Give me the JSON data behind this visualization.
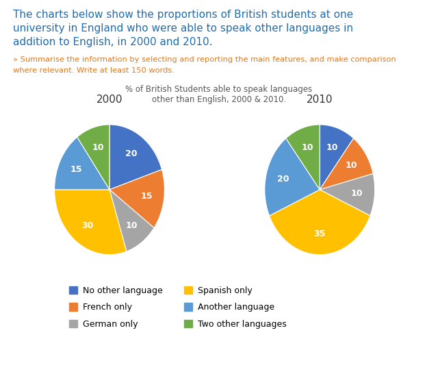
{
  "title_line1": "The charts below show the proportions of British students at one",
  "title_line2": "university in England who were able to speak other languages in",
  "title_line3": "addition to English, in 2000 and 2010.",
  "subtitle": "» Summarise the information by selecting and reporting the main features, and make comparison",
  "subtitle2": "where relevant. Write at least 150 words.",
  "chart_title": "% of British Students able to speak languages\nother than English, 2000 & 2010.",
  "title_color": "#1F6CB0",
  "subtitle_color": "#E07820",
  "chart_title_color": "#555555",
  "year_2000_label": "2000",
  "year_2010_label": "2010",
  "categories": [
    "No other language",
    "French only",
    "German only",
    "Spanish only",
    "Another language",
    "Two other languages"
  ],
  "colors": [
    "#4472C4",
    "#ED7D31",
    "#A5A5A5",
    "#FFC000",
    "#5B9BD5",
    "#70AD47"
  ],
  "values_2000": [
    20,
    15,
    10,
    30,
    15,
    10
  ],
  "values_2010": [
    10,
    10,
    10,
    35,
    20,
    10
  ],
  "bg_color": "#FFFFFF",
  "startangle_2000": 90,
  "startangle_2010": 90,
  "pctdistance": 0.68,
  "title_fontsize": 11,
  "subtitle_fontsize": 8.2,
  "chart_title_fontsize": 8.5,
  "year_label_fontsize": 11,
  "pct_fontsize": 9,
  "legend_fontsize": 9
}
